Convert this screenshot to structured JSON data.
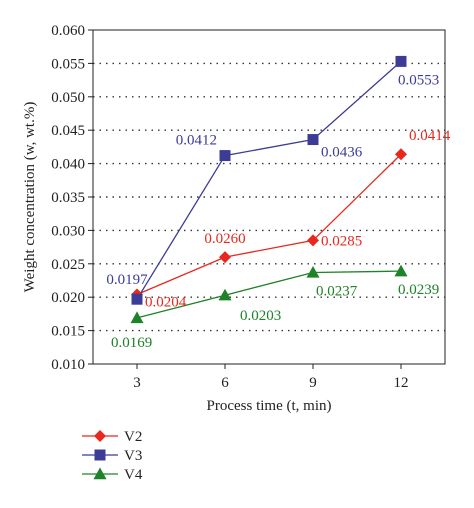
{
  "chart_data": {
    "type": "line",
    "xlabel": "Process time (t, min)",
    "ylabel": "Weight concentration (w, wt.%)",
    "categories": [
      "3",
      "6",
      "9",
      "12"
    ],
    "x": [
      3,
      6,
      9,
      12
    ],
    "xlim": [
      1.5,
      13.5
    ],
    "ylim": [
      0.01,
      0.06
    ],
    "yticks": [
      "0.010",
      "0.015",
      "0.020",
      "0.025",
      "0.030",
      "0.035",
      "0.040",
      "0.045",
      "0.050",
      "0.055",
      "0.060"
    ],
    "grid": "horizontal dotted",
    "legend_position": "bottom-left",
    "series": [
      {
        "name": "V2",
        "color": "#e8281e",
        "marker": "diamond",
        "values": [
          0.0204,
          0.026,
          0.0285,
          0.0414
        ],
        "labels": [
          "0.0204",
          "0.0260",
          "0.0285",
          "0.0414"
        ]
      },
      {
        "name": "V3",
        "color": "#3c3c96",
        "marker": "square",
        "values": [
          0.0197,
          0.0412,
          0.0436,
          0.0553
        ],
        "labels": [
          "0.0197",
          "0.0412",
          "0.0436",
          "0.0553"
        ]
      },
      {
        "name": "V4",
        "color": "#1e8228",
        "marker": "triangle",
        "values": [
          0.0169,
          0.0203,
          0.0237,
          0.0239
        ],
        "labels": [
          "0.0169",
          "0.0203",
          "0.0237",
          "0.0239"
        ]
      }
    ]
  }
}
